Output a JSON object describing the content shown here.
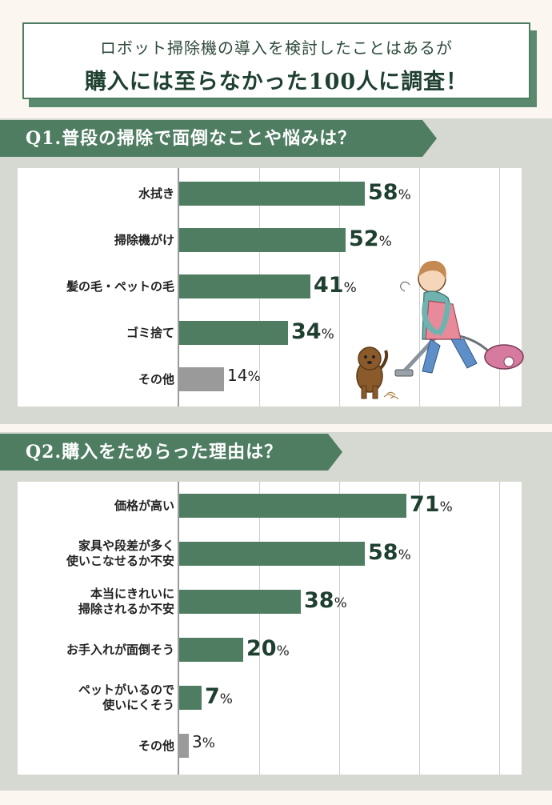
{
  "title": {
    "line1": "ロボット掃除機の導入を検討したことはあるが",
    "line2": "購入には至らなかった100人に調査！"
  },
  "colors": {
    "bar_main": "#4f7d62",
    "bar_other": "#9a9a9a",
    "banner": "#4f7d62",
    "section_bg": "#d5d9d1"
  },
  "chart_data": [
    {
      "type": "bar",
      "title": "Q1.普段の掃除で面倒なことや悩みは？",
      "orientation": "horizontal",
      "unit": "%",
      "xlim": [
        0,
        100
      ],
      "grid": true,
      "categories": [
        "水拭き",
        "掃除機がけ",
        "髪の毛・ペットの毛",
        "ゴミ捨て",
        "その他"
      ],
      "values": [
        58,
        52,
        41,
        34,
        14
      ]
    },
    {
      "type": "bar",
      "title": "Q2.購入をためらった理由は？",
      "orientation": "horizontal",
      "unit": "%",
      "xlim": [
        0,
        100
      ],
      "grid": true,
      "categories": [
        "価格が高い",
        "家具や段差が多く\n使いこなせるか不安",
        "本当にきれいに\n掃除されるか不安",
        "お手入れが面倒そう",
        "ペットがいるので\n使いにくそう",
        "その他"
      ],
      "values": [
        71,
        58,
        38,
        20,
        7,
        3
      ]
    }
  ]
}
